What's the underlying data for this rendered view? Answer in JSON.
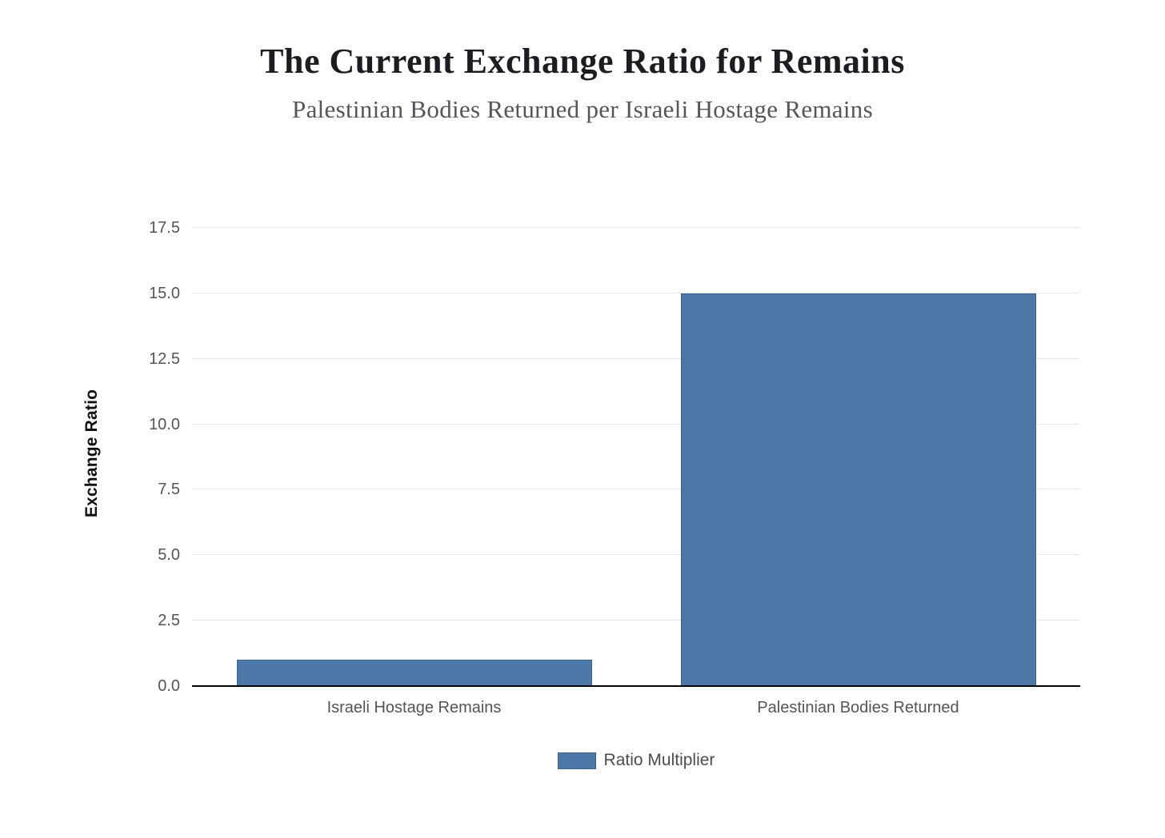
{
  "chart_data": {
    "type": "bar",
    "title": "The Current Exchange Ratio for Remains",
    "subtitle": "Palestinian Bodies Returned per Israeli Hostage Remains",
    "ylabel": "Exchange Ratio",
    "xlabel": "",
    "categories": [
      "Israeli Hostage Remains",
      "Palestinian Bodies Returned"
    ],
    "series": [
      {
        "name": "Ratio Multiplier",
        "values": [
          1.0,
          15.0
        ]
      }
    ],
    "ylim": [
      0,
      17.5
    ],
    "yticks": [
      0,
      2.5,
      5,
      7.5,
      10,
      12.5,
      15,
      17.5
    ],
    "ytick_labels": [
      "0.0",
      "2.5",
      "5.0",
      "7.5",
      "10.0",
      "12.5",
      "15.0",
      "17.5"
    ],
    "grid": true,
    "legend_position": "bottom-center"
  },
  "colors": {
    "bar_fill": "#4c78a8",
    "bar_border": "#3b618c",
    "gridline": "#e6e7eb",
    "axis_line": "#000000",
    "tick_text": "#555555",
    "category_text": "#555555",
    "legend_text": "#4d4d4d",
    "title_text": "#1c1c21",
    "subtitle_text": "#55565c",
    "ylabel_text": "#111111"
  }
}
